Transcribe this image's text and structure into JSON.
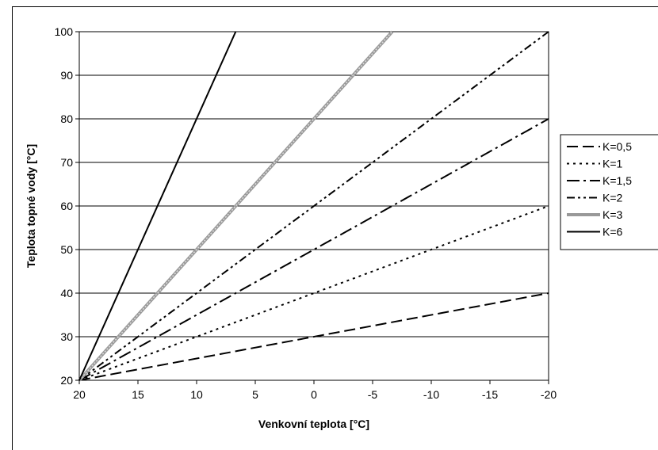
{
  "chart_data": {
    "type": "line",
    "title": "",
    "xlabel": "Venkovní teplota [°C]",
    "ylabel": "Teplota topné vody [°C]",
    "xlim": [
      20,
      -20
    ],
    "ylim": [
      20,
      100
    ],
    "x_ticks": [
      "20",
      "15",
      "10",
      "5",
      "0",
      "-5",
      "-10",
      "-15",
      "-20"
    ],
    "y_ticks": [
      "20",
      "30",
      "40",
      "50",
      "60",
      "70",
      "80",
      "90",
      "100"
    ],
    "grid": "horizontal",
    "legend_position": "right",
    "x": [
      20,
      -20
    ],
    "series": [
      {
        "name": "K=0,5",
        "x": [
          20,
          -20
        ],
        "values": [
          20,
          40
        ],
        "dash": "long-dash"
      },
      {
        "name": "K=1",
        "x": [
          20,
          -20
        ],
        "values": [
          20,
          60
        ],
        "dash": "dotted"
      },
      {
        "name": "K=1,5",
        "x": [
          20,
          -20
        ],
        "values": [
          20,
          80
        ],
        "dash": "long-dash-dot"
      },
      {
        "name": "K=2",
        "x": [
          20,
          -20
        ],
        "values": [
          20,
          100
        ],
        "dash": "dash-dot-dot"
      },
      {
        "name": "K=3",
        "x": [
          20,
          -6.67
        ],
        "values": [
          20,
          100
        ],
        "dash": "gray-thick"
      },
      {
        "name": "K=6",
        "x": [
          20,
          6.67
        ],
        "values": [
          20,
          100
        ],
        "dash": "solid"
      }
    ]
  }
}
